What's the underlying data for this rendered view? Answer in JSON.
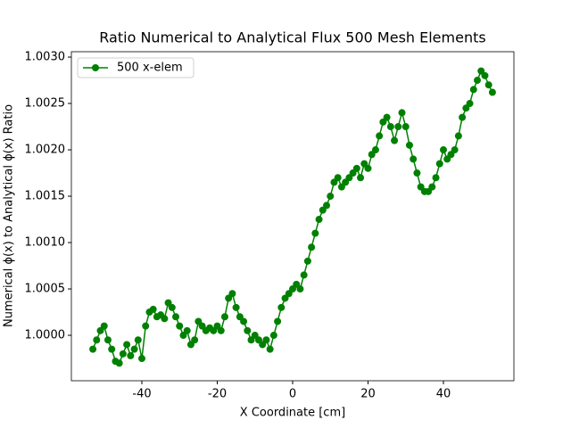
{
  "chart_data": {
    "type": "line",
    "title": "Ratio Numerical to Analytical Flux 500 Mesh Elements",
    "xlabel": "X Coordinate [cm]",
    "ylabel": "Numerical ϕ(x) to Analytical ϕ(x) Ratio",
    "x": [
      -53,
      -52,
      -51,
      -50,
      -49,
      -48,
      -47,
      -46,
      -45,
      -44,
      -43,
      -42,
      -41,
      -40,
      -39,
      -38,
      -37,
      -36,
      -35,
      -34,
      -33,
      -32,
      -31,
      -30,
      -29,
      -28,
      -27,
      -26,
      -25,
      -24,
      -23,
      -22,
      -21,
      -20,
      -19,
      -18,
      -17,
      -16,
      -15,
      -14,
      -13,
      -12,
      -11,
      -10,
      -9,
      -8,
      -7,
      -6,
      -5,
      -4,
      -3,
      -2,
      -1,
      0,
      1,
      2,
      3,
      4,
      5,
      6,
      7,
      8,
      9,
      10,
      11,
      12,
      13,
      14,
      15,
      16,
      17,
      18,
      19,
      20,
      21,
      22,
      23,
      24,
      25,
      26,
      27,
      28,
      29,
      30,
      31,
      32,
      33,
      34,
      35,
      36,
      37,
      38,
      39,
      40,
      41,
      42,
      43,
      44,
      45,
      46,
      47,
      48,
      49,
      50,
      51,
      52,
      53
    ],
    "series": [
      {
        "name": "500 x-elem",
        "color": "#008000",
        "values": [
          0.99985,
          0.99995,
          1.00005,
          1.0001,
          0.99995,
          0.99985,
          0.99972,
          0.9997,
          0.9998,
          0.9999,
          0.99978,
          0.99985,
          0.99995,
          0.99975,
          1.0001,
          1.00025,
          1.00028,
          1.0002,
          1.00022,
          1.00018,
          1.00035,
          1.0003,
          1.0002,
          1.0001,
          1.0,
          1.00005,
          0.9999,
          0.99995,
          1.00015,
          1.0001,
          1.00005,
          1.00008,
          1.00005,
          1.0001,
          1.00005,
          1.0002,
          1.0004,
          1.00045,
          1.0003,
          1.0002,
          1.00015,
          1.00005,
          0.99995,
          1.0,
          0.99995,
          0.9999,
          0.99995,
          0.99985,
          1.0,
          1.00015,
          1.0003,
          1.0004,
          1.00045,
          1.0005,
          1.00055,
          1.0005,
          1.00065,
          1.0008,
          1.00095,
          1.0011,
          1.00125,
          1.00135,
          1.0014,
          1.0015,
          1.00165,
          1.0017,
          1.0016,
          1.00165,
          1.0017,
          1.00175,
          1.0018,
          1.0017,
          1.00185,
          1.0018,
          1.00195,
          1.002,
          1.00215,
          1.0023,
          1.00235,
          1.00225,
          1.0021,
          1.00225,
          1.0024,
          1.00225,
          1.00205,
          1.0019,
          1.00175,
          1.0016,
          1.00155,
          1.00155,
          1.0016,
          1.0017,
          1.00185,
          1.002,
          1.0019,
          1.00195,
          1.002,
          1.00215,
          1.00235,
          1.00245,
          1.0025,
          1.00265,
          1.00275,
          1.00285,
          1.0028,
          1.0027,
          1.00262
        ]
      }
    ],
    "xlim": [
      -58.7,
      58.7
    ],
    "xticks": [
      -40,
      -20,
      0,
      20,
      40
    ],
    "ylim": [
      0.99951,
      1.003058
    ],
    "yticks": [
      {
        "value": 1.0,
        "label": "1.0000"
      },
      {
        "value": 1.0005,
        "label": "1.0005"
      },
      {
        "value": 1.001,
        "label": "1.0010"
      },
      {
        "value": 1.0015,
        "label": "1.0015"
      },
      {
        "value": 1.002,
        "label": "1.0020"
      },
      {
        "value": 1.0025,
        "label": "1.0025"
      },
      {
        "value": 1.003,
        "label": "1.0030"
      }
    ],
    "legend": "upper left"
  }
}
